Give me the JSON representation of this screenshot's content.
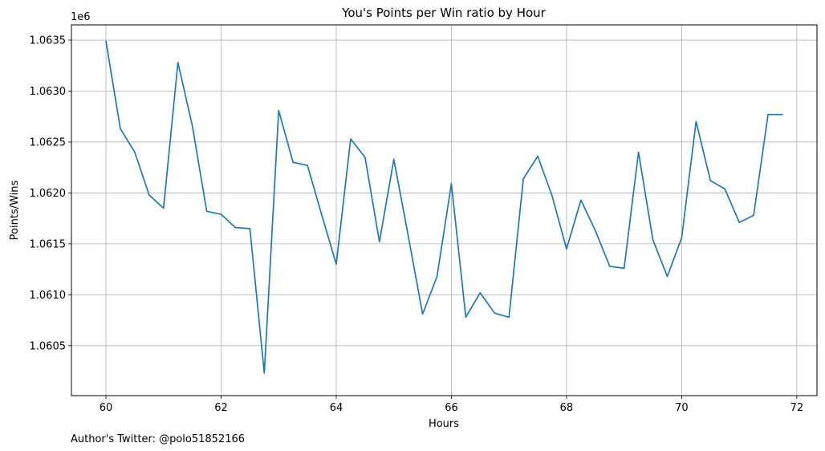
{
  "chart_data": {
    "type": "line",
    "title": "You's Points per Win ratio by Hour",
    "xlabel": "Hours",
    "ylabel": "Points/Wins",
    "y_offset_label": "1e6",
    "footer": "Author's Twitter: @polo51852166",
    "grid": true,
    "line_color": "#1f77b4",
    "xlim": [
      59.4,
      72.35
    ],
    "ylim": [
      1.06001,
      1.06365
    ],
    "x_ticks": [
      60,
      62,
      64,
      66,
      68,
      70,
      72
    ],
    "x_tick_labels": [
      "60",
      "62",
      "64",
      "66",
      "68",
      "70",
      "72"
    ],
    "y_ticks": [
      1.0605,
      1.061,
      1.0615,
      1.062,
      1.0625,
      1.063,
      1.0635
    ],
    "y_tick_labels": [
      "1.0605",
      "1.0610",
      "1.0615",
      "1.0620",
      "1.0625",
      "1.0630",
      "1.0635"
    ],
    "series": [
      {
        "x": [
          60,
          60.25,
          60.5,
          60.75,
          61,
          61.25,
          61.5,
          61.75,
          62,
          62.25,
          62.5,
          62.75,
          63,
          63.25,
          63.5,
          63.75,
          64,
          64.25,
          64.5,
          64.75,
          65,
          65.25,
          65.5,
          65.75,
          66,
          66.25,
          66.5,
          66.75,
          67,
          67.25,
          67.5,
          67.75,
          68,
          68.25,
          68.5,
          68.75,
          69,
          69.25,
          69.5,
          69.75,
          70,
          70.25,
          70.5,
          70.75,
          71,
          71.25,
          71.5,
          71.75
        ],
        "values": [
          1.06349,
          1.06263,
          1.0624,
          1.06198,
          1.06185,
          1.06328,
          1.06266,
          1.06182,
          1.06179,
          1.06166,
          1.06165,
          1.06023,
          1.06281,
          1.0623,
          1.06227,
          1.06178,
          1.0613,
          1.06253,
          1.06235,
          1.06152,
          1.06233,
          1.06158,
          1.06081,
          1.06118,
          1.06209,
          1.06078,
          1.06102,
          1.06082,
          1.06078,
          1.06214,
          1.06236,
          1.06197,
          1.06145,
          1.06193,
          1.06163,
          1.06128,
          1.06126,
          1.0624,
          1.06154,
          1.06118,
          1.06156,
          1.0627,
          1.06212,
          1.06204,
          1.06171,
          1.06178,
          1.06277,
          1.06277
        ]
      }
    ]
  }
}
